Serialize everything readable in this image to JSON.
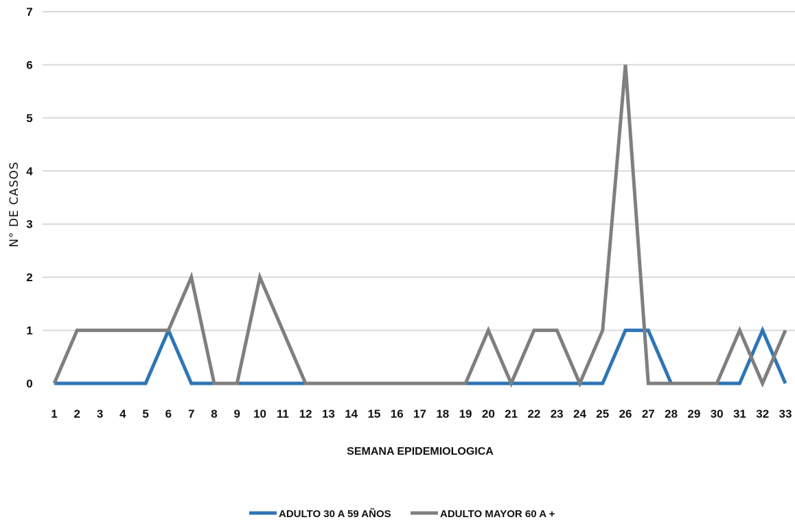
{
  "chart_data": {
    "type": "line",
    "title": "",
    "xlabel": "SEMANA EPIDEMIOLOGICA",
    "ylabel": "N° DE CASOS",
    "x": [
      1,
      2,
      3,
      4,
      5,
      6,
      7,
      8,
      9,
      10,
      11,
      12,
      13,
      14,
      15,
      16,
      17,
      18,
      19,
      20,
      21,
      22,
      23,
      24,
      25,
      26,
      27,
      28,
      29,
      30,
      31,
      32,
      33
    ],
    "ylim": [
      0,
      7
    ],
    "yticks": [
      0,
      1,
      2,
      3,
      4,
      5,
      6,
      7
    ],
    "grid": true,
    "legend_position": "bottom",
    "series": [
      {
        "name": "ADULTO 30 A 59 AÑOS",
        "color": "#2e75b6",
        "values": [
          0,
          0,
          0,
          0,
          0,
          1,
          0,
          0,
          0,
          0,
          0,
          0,
          0,
          0,
          0,
          0,
          0,
          0,
          0,
          0,
          0,
          0,
          0,
          0,
          0,
          1,
          1,
          0,
          0,
          0,
          0,
          1,
          0
        ]
      },
      {
        "name": "ADULTO MAYOR 60 A +",
        "color": "#7f7f7f",
        "values": [
          0,
          1,
          1,
          1,
          1,
          1,
          2,
          0,
          0,
          2,
          1,
          0,
          0,
          0,
          0,
          0,
          0,
          0,
          0,
          1,
          0,
          1,
          1,
          0,
          1,
          6,
          0,
          0,
          0,
          0,
          1,
          0,
          1
        ]
      }
    ]
  }
}
